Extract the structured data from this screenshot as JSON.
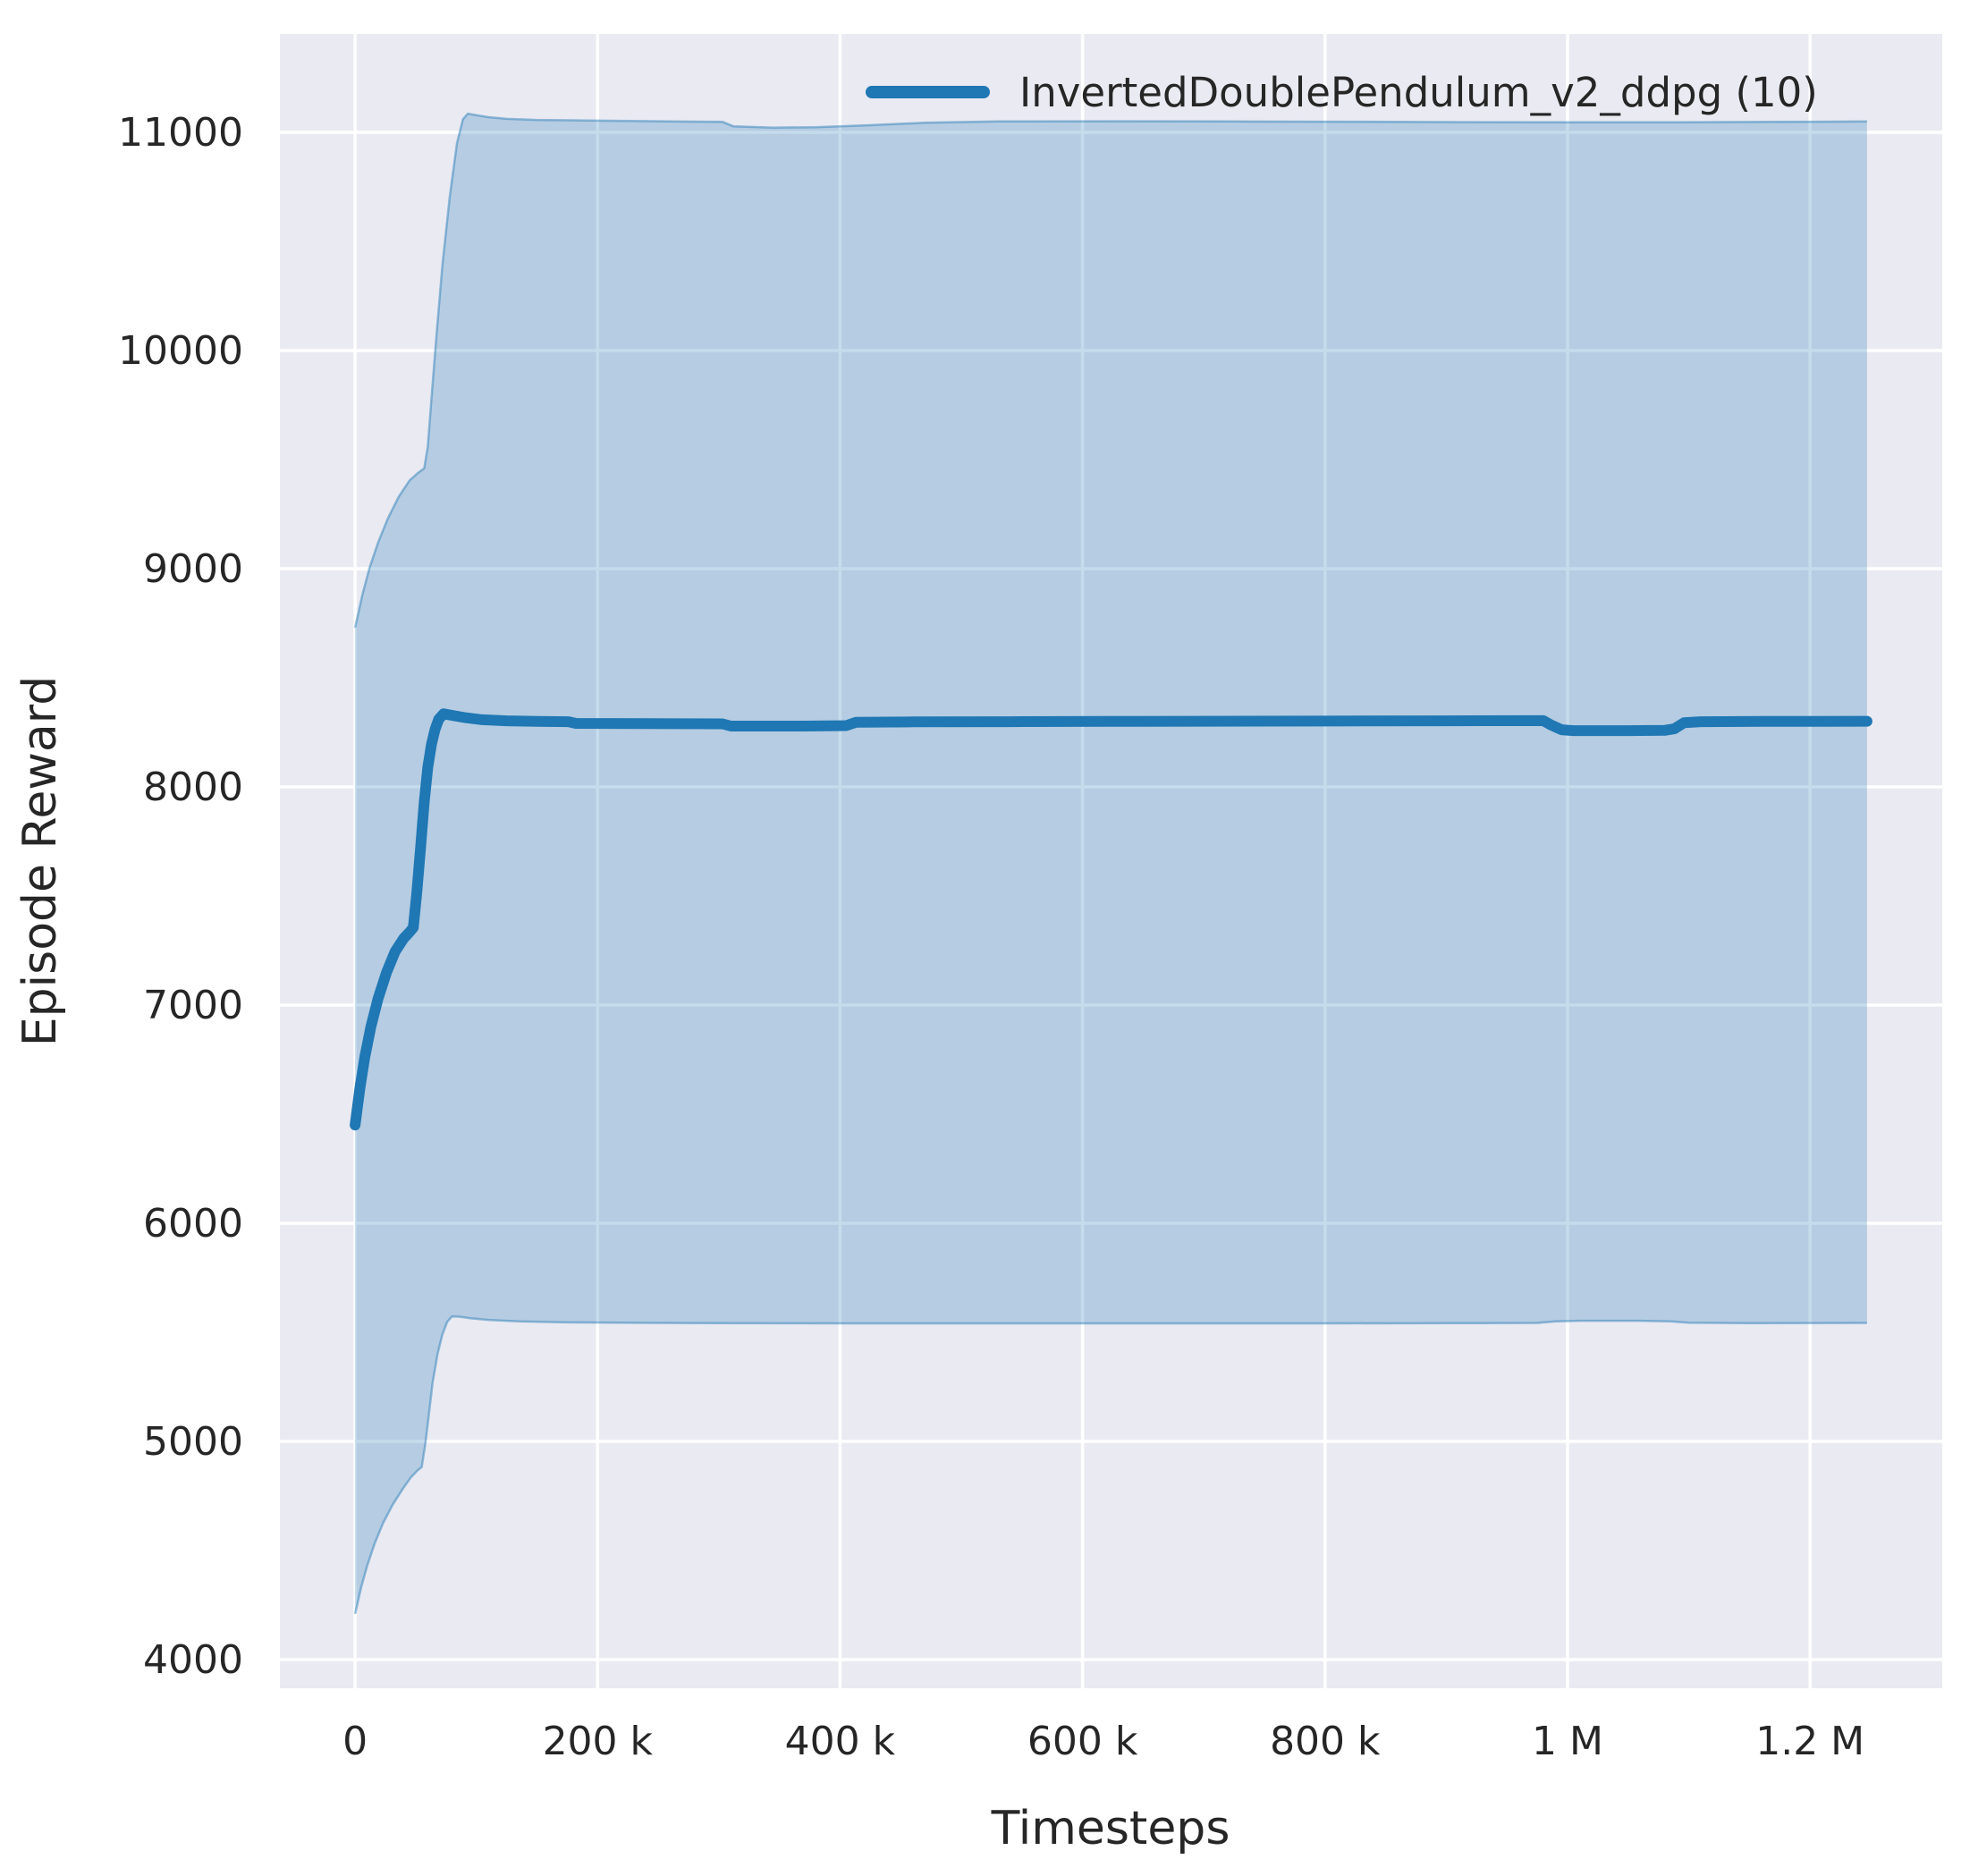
{
  "chart_data": {
    "type": "line",
    "title": "",
    "xlabel": "Timesteps",
    "ylabel": "Episode Reward",
    "xlim": [
      -62000,
      1309000
    ],
    "ylim": [
      3869,
      11451
    ],
    "grid": true,
    "x_ticks": [
      {
        "value": 0,
        "label": "0"
      },
      {
        "value": 200000,
        "label": "200 k"
      },
      {
        "value": 400000,
        "label": "400 k"
      },
      {
        "value": 600000,
        "label": "600 k"
      },
      {
        "value": 800000,
        "label": "800 k"
      },
      {
        "value": 1000000,
        "label": "1 M"
      },
      {
        "value": 1200000,
        "label": "1.2 M"
      }
    ],
    "y_ticks": [
      {
        "value": 4000,
        "label": "4000"
      },
      {
        "value": 5000,
        "label": "5000"
      },
      {
        "value": 6000,
        "label": "6000"
      },
      {
        "value": 7000,
        "label": "7000"
      },
      {
        "value": 8000,
        "label": "8000"
      },
      {
        "value": 9000,
        "label": "9000"
      },
      {
        "value": 10000,
        "label": "10000"
      },
      {
        "value": 11000,
        "label": "11000"
      }
    ],
    "legend": {
      "position": "upper center-right, inside axes, no frame",
      "entries": [
        {
          "label": "InvertedDoublePendulum_v2_ddpg (10)",
          "color": "#1f77b4"
        }
      ]
    },
    "colors": {
      "line": "#1f77b4",
      "band_fill": "#1f77b4",
      "band_fill_opacity": 0.26,
      "band_edge": "rgba(31,119,180,0.45)",
      "plot_background": "#eaeaf2",
      "grid": "#ffffff",
      "text": "#262626"
    },
    "series": [
      {
        "name": "InvertedDoublePendulum_v2_ddpg (10)",
        "color": "#1f77b4",
        "mean": [
          [
            0,
            6450
          ],
          [
            4000,
            6620
          ],
          [
            8000,
            6760
          ],
          [
            13000,
            6900
          ],
          [
            19000,
            7030
          ],
          [
            26000,
            7150
          ],
          [
            33000,
            7245
          ],
          [
            40000,
            7305
          ],
          [
            45000,
            7335
          ],
          [
            48000,
            7355
          ],
          [
            51000,
            7520
          ],
          [
            54000,
            7720
          ],
          [
            57000,
            7930
          ],
          [
            60000,
            8090
          ],
          [
            63000,
            8195
          ],
          [
            66000,
            8265
          ],
          [
            69000,
            8310
          ],
          [
            73000,
            8335
          ],
          [
            80000,
            8328
          ],
          [
            90000,
            8318
          ],
          [
            105000,
            8308
          ],
          [
            125000,
            8303
          ],
          [
            150000,
            8300
          ],
          [
            176000,
            8299
          ],
          [
            182000,
            8291
          ],
          [
            240000,
            8290
          ],
          [
            303000,
            8289
          ],
          [
            310000,
            8279
          ],
          [
            370000,
            8279
          ],
          [
            405000,
            8281
          ],
          [
            413000,
            8296
          ],
          [
            460000,
            8298
          ],
          [
            540000,
            8299
          ],
          [
            620000,
            8300
          ],
          [
            700000,
            8301
          ],
          [
            800000,
            8302
          ],
          [
            900000,
            8303
          ],
          [
            980000,
            8304
          ],
          [
            986000,
            8285
          ],
          [
            995000,
            8262
          ],
          [
            1005000,
            8258
          ],
          [
            1050000,
            8258
          ],
          [
            1080000,
            8259
          ],
          [
            1088000,
            8266
          ],
          [
            1096000,
            8294
          ],
          [
            1110000,
            8299
          ],
          [
            1160000,
            8300
          ],
          [
            1247000,
            8301
          ]
        ],
        "band_upper": [
          [
            0,
            8730
          ],
          [
            6000,
            8880
          ],
          [
            12000,
            9005
          ],
          [
            19000,
            9120
          ],
          [
            27000,
            9230
          ],
          [
            36000,
            9330
          ],
          [
            45000,
            9405
          ],
          [
            52000,
            9440
          ],
          [
            57000,
            9460
          ],
          [
            60000,
            9560
          ],
          [
            63000,
            9780
          ],
          [
            67000,
            10060
          ],
          [
            72000,
            10390
          ],
          [
            78000,
            10700
          ],
          [
            84000,
            10950
          ],
          [
            89000,
            11060
          ],
          [
            93000,
            11086
          ],
          [
            100000,
            11079
          ],
          [
            110000,
            11070
          ],
          [
            125000,
            11062
          ],
          [
            150000,
            11057
          ],
          [
            200000,
            11054
          ],
          [
            260000,
            11050
          ],
          [
            303000,
            11048
          ],
          [
            312000,
            11028
          ],
          [
            345000,
            11022
          ],
          [
            380000,
            11024
          ],
          [
            420000,
            11032
          ],
          [
            470000,
            11044
          ],
          [
            530000,
            11050
          ],
          [
            620000,
            11051
          ],
          [
            720000,
            11050
          ],
          [
            820000,
            11049
          ],
          [
            920000,
            11047
          ],
          [
            1000000,
            11046
          ],
          [
            1090000,
            11046
          ],
          [
            1170000,
            11048
          ],
          [
            1247000,
            11050
          ]
        ],
        "band_lower": [
          [
            0,
            4210
          ],
          [
            5000,
            4330
          ],
          [
            10000,
            4430
          ],
          [
            16000,
            4530
          ],
          [
            23000,
            4625
          ],
          [
            31000,
            4710
          ],
          [
            39000,
            4780
          ],
          [
            46000,
            4835
          ],
          [
            52000,
            4870
          ],
          [
            55000,
            4882
          ],
          [
            58000,
            4990
          ],
          [
            61000,
            5130
          ],
          [
            64000,
            5270
          ],
          [
            68000,
            5400
          ],
          [
            72000,
            5490
          ],
          [
            76000,
            5548
          ],
          [
            80000,
            5573
          ],
          [
            86000,
            5572
          ],
          [
            95000,
            5565
          ],
          [
            110000,
            5557
          ],
          [
            135000,
            5550
          ],
          [
            170000,
            5546
          ],
          [
            220000,
            5544
          ],
          [
            300000,
            5542
          ],
          [
            400000,
            5541
          ],
          [
            500000,
            5541
          ],
          [
            600000,
            5541
          ],
          [
            700000,
            5541
          ],
          [
            800000,
            5541
          ],
          [
            900000,
            5542
          ],
          [
            975000,
            5543
          ],
          [
            990000,
            5550
          ],
          [
            1010000,
            5553
          ],
          [
            1060000,
            5553
          ],
          [
            1085000,
            5550
          ],
          [
            1100000,
            5544
          ],
          [
            1150000,
            5542
          ],
          [
            1247000,
            5543
          ]
        ]
      }
    ]
  }
}
